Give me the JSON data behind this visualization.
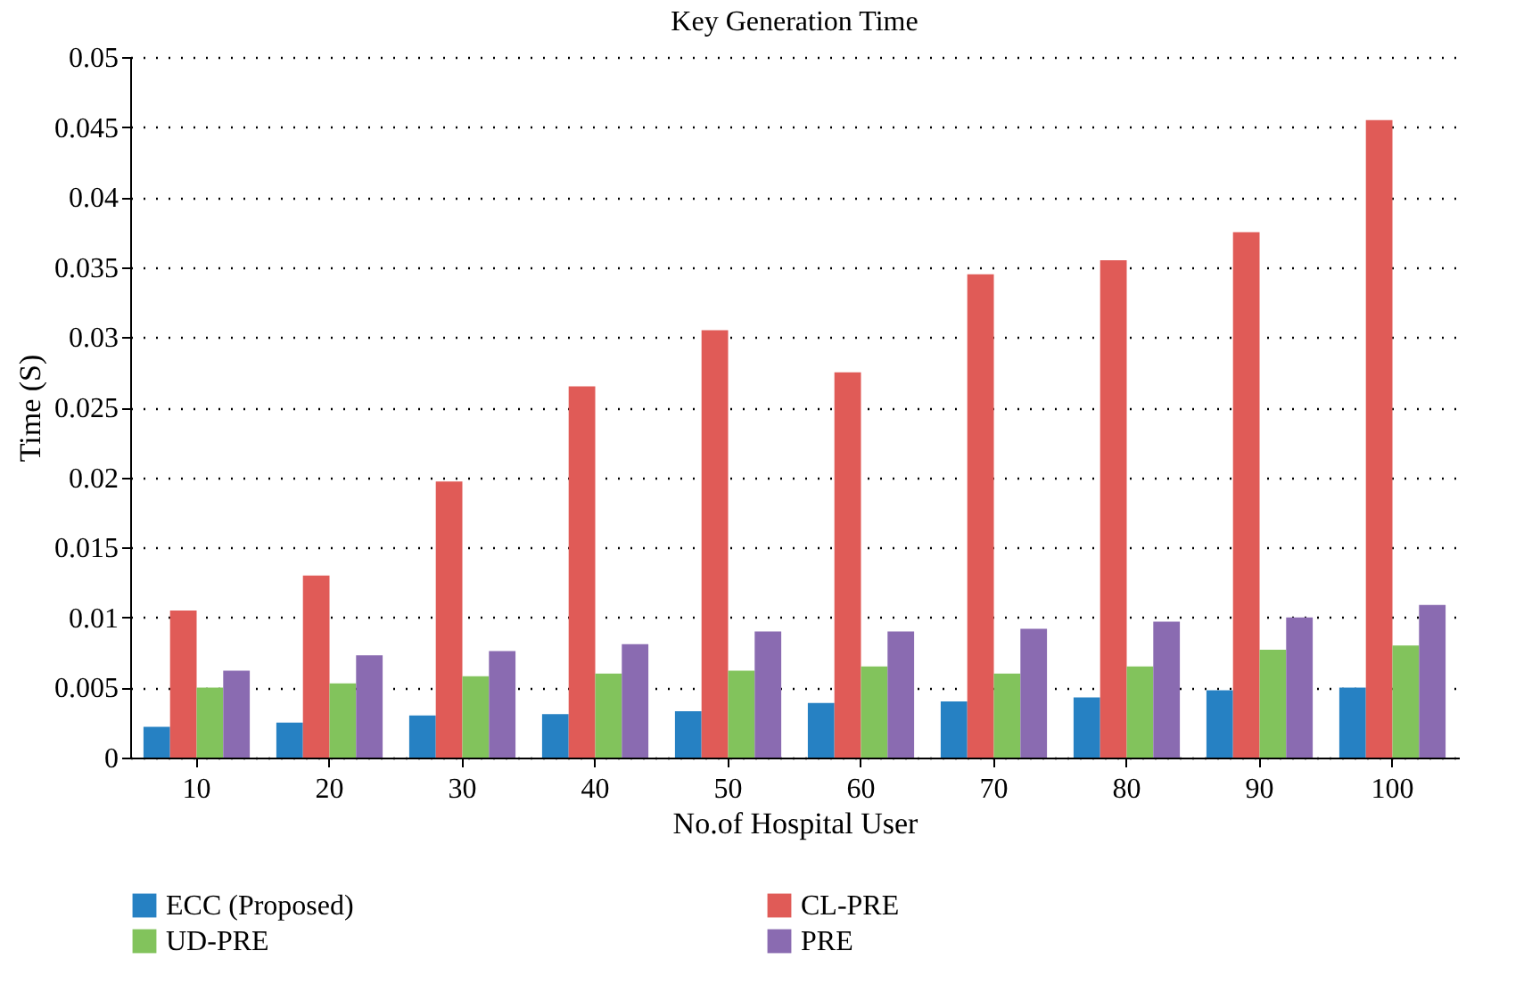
{
  "chart_data": {
    "type": "bar",
    "title": "Key Generation Time",
    "xlabel": "No.of Hospital User",
    "ylabel": "Time (S)",
    "categories": [
      "10",
      "20",
      "30",
      "40",
      "50",
      "60",
      "70",
      "80",
      "90",
      "100"
    ],
    "series": [
      {
        "name": "ECC (Proposed)",
        "color": "#2681c3",
        "values": [
          0.0022,
          0.0025,
          0.003,
          0.0031,
          0.0033,
          0.0039,
          0.004,
          0.0043,
          0.0048,
          0.005
        ]
      },
      {
        "name": "CL-PRE",
        "color": "#e05b57",
        "values": [
          0.0105,
          0.013,
          0.0197,
          0.0265,
          0.0305,
          0.0275,
          0.0345,
          0.0355,
          0.0375,
          0.0455
        ]
      },
      {
        "name": "UD-PRE",
        "color": "#82c35c",
        "values": [
          0.005,
          0.0053,
          0.0058,
          0.006,
          0.0062,
          0.0065,
          0.006,
          0.0065,
          0.0077,
          0.008
        ]
      },
      {
        "name": "PRE",
        "color": "#8a6bb1",
        "values": [
          0.0062,
          0.0073,
          0.0076,
          0.0081,
          0.009,
          0.009,
          0.0092,
          0.0097,
          0.01,
          0.0109
        ]
      }
    ],
    "ylim": [
      0,
      0.05
    ],
    "yticks": [
      0,
      0.005,
      0.01,
      0.015,
      0.02,
      0.025,
      0.03,
      0.035,
      0.04,
      0.045,
      0.05
    ],
    "grid": "y",
    "legend": "bottom"
  }
}
